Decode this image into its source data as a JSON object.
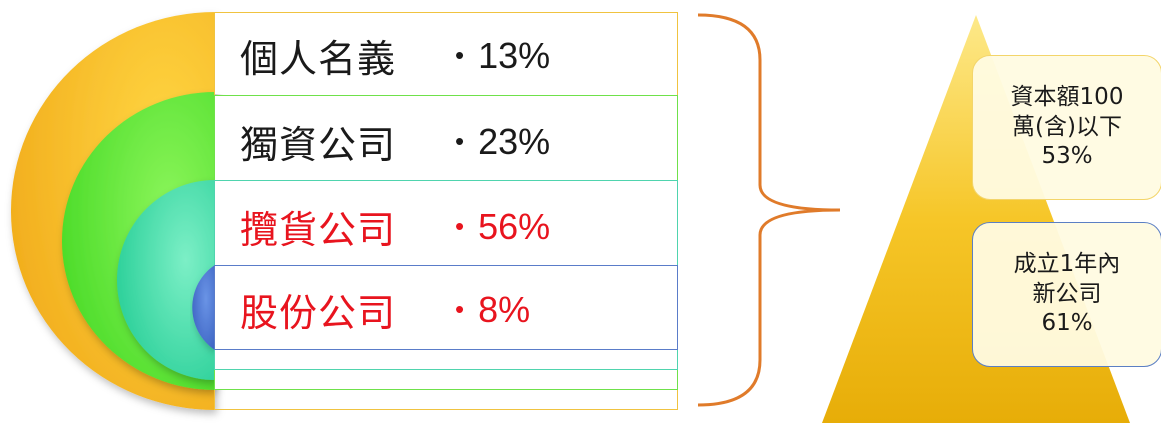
{
  "rings": [
    {
      "name": "個人名義",
      "percent": "13%",
      "color": "#f5c518",
      "highlight": false
    },
    {
      "name": "獨資公司",
      "percent": "23%",
      "color": "#5ee83a",
      "highlight": false
    },
    {
      "name": "攬貨公司",
      "percent": "56%",
      "color": "#2fd3a2",
      "highlight": true
    },
    {
      "name": "股份公司",
      "percent": "8%",
      "color": "#3f6fd1",
      "highlight": true
    }
  ],
  "bullet": "•",
  "callouts": [
    {
      "lines": [
        "資本額100",
        "萬(含)以下",
        "53%"
      ],
      "border": "#f3d56a"
    },
    {
      "lines": [
        "成立1年內",
        "新公司",
        "61%"
      ],
      "border": "#5b7fc4"
    }
  ],
  "colors": {
    "brace": "#e07b2a",
    "pyramid_top": "#fbd545",
    "pyramid_bottom": "#e9b10c",
    "highlight_text": "#e8141e"
  }
}
